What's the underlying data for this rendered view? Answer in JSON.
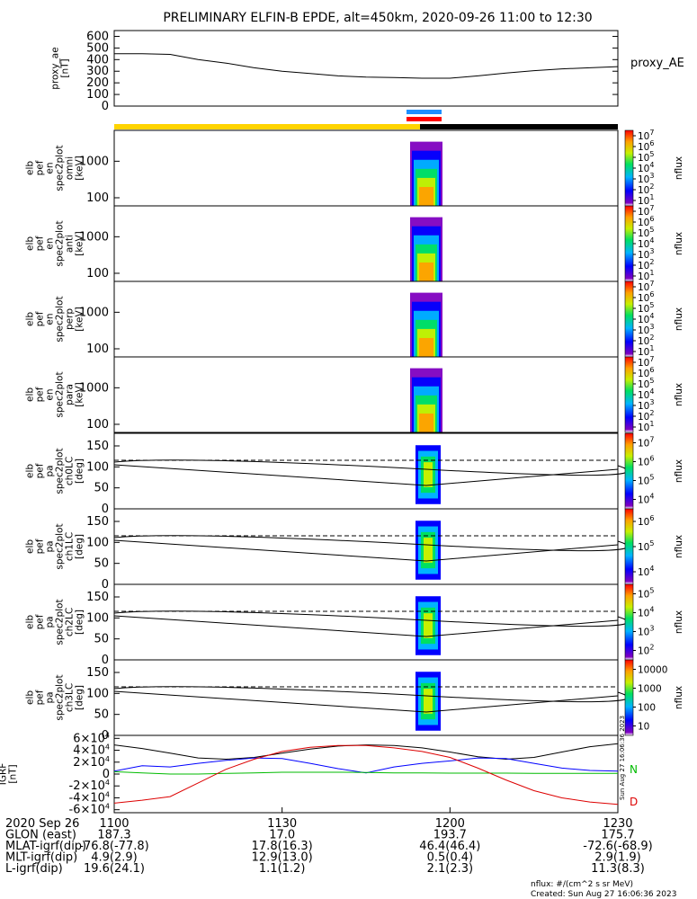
{
  "title": "PRELIMINARY ELFIN-B EPDE, alt=450km, 2020-09-26 11:00 to 12:30",
  "colors": {
    "yellow_bar": "#ffd400",
    "black_bar": "#000000",
    "blue_bar": "#1e8fff",
    "red_bar": "#ff0000",
    "igrf_black": "#000000",
    "igrf_blue": "#0000ff",
    "igrf_green": "#00bb00",
    "igrf_red": "#dd0000"
  },
  "chart_data": [
    {
      "name": "proxy_ae",
      "type": "line",
      "ylabel": [
        "proxy_ae",
        "[nT]"
      ],
      "right_label": "proxy_AE",
      "ylim": [
        0,
        650
      ],
      "yticks": [
        "0",
        "100",
        "200",
        "300",
        "400",
        "500",
        "600"
      ],
      "x": [
        "11:00",
        "11:05",
        "11:10",
        "11:15",
        "11:20",
        "11:25",
        "11:30",
        "11:35",
        "11:40",
        "11:45",
        "11:50",
        "11:55",
        "12:00",
        "12:05",
        "12:10",
        "12:15",
        "12:20",
        "12:25",
        "12:30"
      ],
      "values": [
        450,
        450,
        445,
        400,
        370,
        330,
        300,
        280,
        260,
        250,
        245,
        240,
        240,
        260,
        285,
        305,
        320,
        330,
        340
      ]
    },
    {
      "name": "spec_omni",
      "type": "heatmap",
      "ylabel": [
        "elb",
        "pef",
        "en",
        "spec2plot",
        "omni",
        "[keV]"
      ],
      "yticks": [
        "100",
        "1000"
      ],
      "colorbar": {
        "label": "nflux",
        "ticks": [
          "10^1",
          "10^2",
          "10^3",
          "10^4",
          "10^5",
          "10^6",
          "10^7"
        ]
      }
    },
    {
      "name": "spec_anti",
      "type": "heatmap",
      "ylabel": [
        "elb",
        "pef",
        "en",
        "spec2plot",
        "anti",
        "[keV]"
      ],
      "yticks": [
        "100",
        "1000"
      ],
      "colorbar": {
        "label": "nflux",
        "ticks": [
          "10^1",
          "10^2",
          "10^3",
          "10^4",
          "10^5",
          "10^6",
          "10^7"
        ]
      }
    },
    {
      "name": "spec_perp",
      "type": "heatmap",
      "ylabel": [
        "elb",
        "pef",
        "en",
        "spec2plot",
        "perp",
        "[keV]"
      ],
      "yticks": [
        "100",
        "1000"
      ],
      "colorbar": {
        "label": "nflux",
        "ticks": [
          "10^1",
          "10^2",
          "10^3",
          "10^4",
          "10^5",
          "10^6",
          "10^7"
        ]
      }
    },
    {
      "name": "spec_para",
      "type": "heatmap",
      "ylabel": [
        "elb",
        "pef",
        "en",
        "spec2plot",
        "para",
        "[keV]"
      ],
      "yticks": [
        "100",
        "1000"
      ],
      "colorbar": {
        "label": "nflux",
        "ticks": [
          "10^1",
          "10^2",
          "10^3",
          "10^4",
          "10^5",
          "10^6",
          "10^7"
        ]
      }
    },
    {
      "name": "pa_ch0LC",
      "type": "heatmap",
      "ylabel": [
        "elb",
        "pef",
        "pa",
        "spec2plot",
        "ch0LC",
        "[deg]"
      ],
      "yticks": [
        "0",
        "50",
        "100",
        "150"
      ],
      "colorbar": {
        "label": "nflux",
        "ticks": [
          "10^4",
          "10^5",
          "10^6",
          "10^7"
        ]
      }
    },
    {
      "name": "pa_ch1LC",
      "type": "heatmap",
      "ylabel": [
        "elb",
        "pef",
        "pa",
        "spec2plot",
        "ch1LC",
        "[deg]"
      ],
      "yticks": [
        "0",
        "50",
        "100",
        "150"
      ],
      "colorbar": {
        "label": "nflux",
        "ticks": [
          "10^4",
          "10^5",
          "10^6"
        ]
      }
    },
    {
      "name": "pa_ch2LC",
      "type": "heatmap",
      "ylabel": [
        "elb",
        "pef",
        "pa",
        "spec2plot",
        "ch2LC",
        "[deg]"
      ],
      "yticks": [
        "0",
        "50",
        "100",
        "150"
      ],
      "colorbar": {
        "label": "nflux",
        "ticks": [
          "10^2",
          "10^3",
          "10^4",
          "10^5"
        ]
      }
    },
    {
      "name": "pa_ch3LC",
      "type": "heatmap",
      "ylabel": [
        "elb",
        "pef",
        "pa",
        "spec2plot",
        "ch3LC",
        "[deg]"
      ],
      "yticks": [
        "0",
        "50",
        "100",
        "150"
      ],
      "colorbar": {
        "label": "nflux",
        "ticks": [
          "10",
          "100",
          "1000",
          "10000"
        ]
      }
    },
    {
      "name": "igrf",
      "type": "line",
      "ylabel": [
        "IGRF",
        "[nT]"
      ],
      "ylim": [
        -65000,
        65000
      ],
      "yticks": [
        "-6×10^4",
        "-4×10^4",
        "-2×10^4",
        "0",
        "2×10^4",
        "4×10^4",
        "6×10^4"
      ],
      "side_stamp": "Sun Aug 27 16:06:36 2023",
      "legend": [
        "N",
        "D"
      ],
      "x": [
        "11:00",
        "11:05",
        "11:10",
        "11:15",
        "11:20",
        "11:25",
        "11:30",
        "11:35",
        "11:40",
        "11:45",
        "11:50",
        "11:55",
        "12:00",
        "12:05",
        "12:10",
        "12:15",
        "12:20",
        "12:25",
        "12:30"
      ],
      "series": [
        {
          "color": "#000000",
          "values": [
            49000,
            43000,
            35000,
            27000,
            25000,
            28000,
            35000,
            42000,
            47000,
            49000,
            48000,
            44000,
            37000,
            29000,
            25000,
            28000,
            37000,
            46000,
            51000
          ]
        },
        {
          "color": "#0000ff",
          "values": [
            5000,
            14000,
            12000,
            18000,
            23000,
            27000,
            26000,
            18000,
            9000,
            2000,
            12000,
            18000,
            22000,
            27000,
            26000,
            18000,
            10000,
            6000,
            5000
          ]
        },
        {
          "color": "#00bb00",
          "values": [
            4000,
            2000,
            0,
            0,
            1000,
            2000,
            3000,
            3000,
            3000,
            2500,
            2000,
            2000,
            1500,
            1500,
            1500,
            1000,
            1000,
            1000,
            1000
          ]
        },
        {
          "color": "#dd0000",
          "values": [
            -49000,
            -44000,
            -38000,
            -15000,
            8000,
            25000,
            38000,
            45000,
            48000,
            48000,
            44000,
            38000,
            28000,
            10000,
            -10000,
            -28000,
            -40000,
            -47000,
            -51000
          ]
        }
      ]
    }
  ],
  "x_axis": {
    "ticks": [
      "1100",
      "1130",
      "1200",
      "1230"
    ],
    "rows": [
      {
        "label": "2020 Sep 26",
        "values": [
          "1100",
          "1130",
          "1200",
          "1230"
        ]
      },
      {
        "label": "GLON (east)",
        "values": [
          "187.3",
          "17.0",
          "193.7",
          "175.7"
        ]
      },
      {
        "label": "MLAT-igrf(dip)",
        "values": [
          "-76.8(-77.8)",
          "17.8(16.3)",
          "46.4(46.4)",
          "-72.6(-68.9)"
        ]
      },
      {
        "label": "MLT-igrf(dip)",
        "values": [
          "4.9(2.9)",
          "12.9(13.0)",
          "0.5(0.4)",
          "2.9(1.9)"
        ]
      },
      {
        "label": "L-igrf(dip)",
        "values": [
          "19.6(24.1)",
          "1.1(1.2)",
          "2.1(2.3)",
          "11.3(8.3)"
        ]
      }
    ]
  },
  "footer": {
    "units": "nflux: #/(cm^2 s sr MeV)",
    "created": "Created: Sun Aug 27 16:06:36 2023"
  }
}
